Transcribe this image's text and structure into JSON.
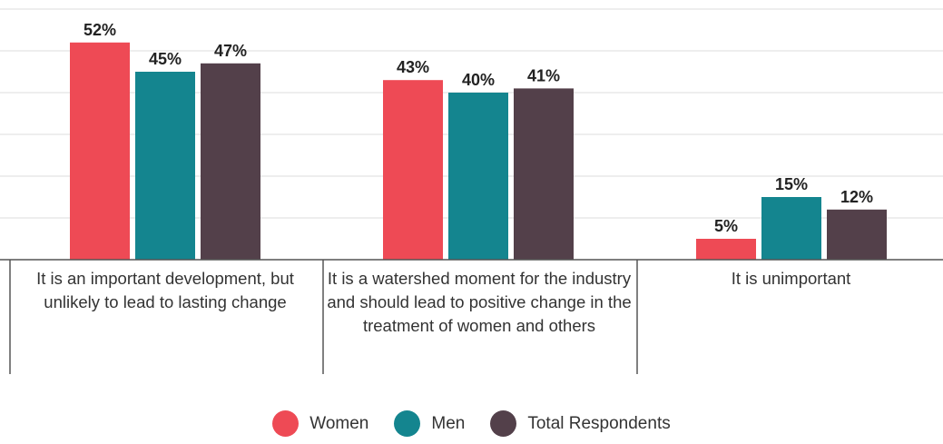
{
  "chart_data": {
    "type": "bar",
    "categories": [
      "It is an important development, but unlikely to lead to lasting change",
      "It is a watershed moment for the industry and should lead to positive change in the treatment of women and others",
      "It is unimportant"
    ],
    "series": [
      {
        "name": "Women",
        "values": [
          52,
          43,
          5
        ],
        "color": "#ee4a55"
      },
      {
        "name": "Men",
        "values": [
          45,
          40,
          15
        ],
        "color": "#14858f"
      },
      {
        "name": "Total Respondents",
        "values": [
          47,
          41,
          12
        ],
        "color": "#53404a"
      }
    ],
    "value_suffix": "%",
    "ylim": [
      0,
      60
    ],
    "grid": true,
    "legend_position": "bottom"
  }
}
